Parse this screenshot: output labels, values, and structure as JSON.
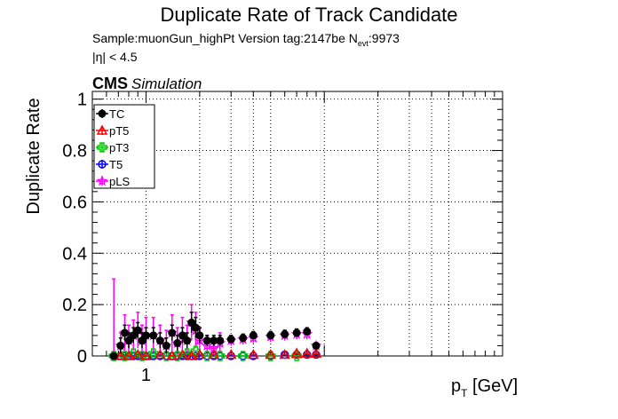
{
  "chart_data": {
    "type": "scatter",
    "title": "Duplicate Rate of Track Candidate",
    "subtitle_sample": "Sample:muonGun_highPt   Version tag:2147be  N",
    "subtitle_nevt_sub": "evt",
    "subtitle_nevt_value": ":9973",
    "subtitle_eta": "|η| < 4.5",
    "cms_label": "CMS",
    "simulation_label": "Simulation",
    "ylabel": "Duplicate Rate",
    "xlabel_main": "p",
    "xlabel_sub": "T",
    "xlabel_unit": " [GeV]",
    "x_scale": "log",
    "xlim": [
      0.5,
      100
    ],
    "ylim": [
      0,
      1.03
    ],
    "yticks": [
      "0",
      "0.2",
      "0.4",
      "0.6",
      "0.8",
      "1"
    ],
    "ytick_values": [
      0,
      0.2,
      0.4,
      0.6,
      0.8,
      1.0
    ],
    "xticks": [
      "1"
    ],
    "xtick_values": [
      1
    ],
    "grid": true,
    "legend_position": "top-left",
    "series": [
      {
        "name": "TC",
        "color": "#000000",
        "marker": "filled-circle",
        "x": [
          0.66,
          0.72,
          0.76,
          0.8,
          0.85,
          0.9,
          0.95,
          1.0,
          1.1,
          1.2,
          1.3,
          1.4,
          1.5,
          1.6,
          1.7,
          1.8,
          1.9,
          2.0,
          2.2,
          2.4,
          2.6,
          3.0,
          3.5,
          4.0,
          5.0,
          6.0,
          7.0,
          8.0,
          9.0
        ],
        "y": [
          0.0,
          0.04,
          0.09,
          0.06,
          0.08,
          0.1,
          0.06,
          0.08,
          0.08,
          0.06,
          0.04,
          0.09,
          0.05,
          0.08,
          0.06,
          0.13,
          0.11,
          0.08,
          0.06,
          0.06,
          0.06,
          0.065,
          0.07,
          0.08,
          0.08,
          0.085,
          0.09,
          0.095,
          0.04
        ],
        "err": [
          0.0,
          0.03,
          0.03,
          0.03,
          0.03,
          0.03,
          0.03,
          0.03,
          0.03,
          0.03,
          0.03,
          0.03,
          0.03,
          0.03,
          0.03,
          0.04,
          0.04,
          0.03,
          0.02,
          0.02,
          0.02,
          0.015,
          0.015,
          0.015,
          0.015,
          0.015,
          0.015,
          0.015,
          0.01
        ]
      },
      {
        "name": "pT5",
        "color": "#ff0000",
        "marker": "open-triangle",
        "x": [
          0.72,
          0.8,
          0.9,
          1.0,
          1.2,
          1.4,
          1.6,
          1.8,
          2.0,
          2.4,
          3.0,
          4.0,
          5.0,
          6.0,
          7.0,
          8.0,
          9.0
        ],
        "y": [
          0.0,
          0.0,
          0.005,
          0.0,
          0.005,
          0.0,
          0.005,
          0.0,
          0.005,
          0.005,
          0.005,
          0.005,
          0.005,
          0.005,
          0.01,
          0.01,
          0.01
        ],
        "err": [
          0,
          0,
          0,
          0,
          0,
          0,
          0,
          0,
          0,
          0,
          0,
          0,
          0,
          0,
          0,
          0,
          0
        ]
      },
      {
        "name": "pT3",
        "color": "#00cc00",
        "marker": "open-cross",
        "x": [
          0.66,
          0.76,
          0.85,
          0.95,
          1.1,
          1.3,
          1.5,
          1.7,
          1.9,
          2.2,
          2.6,
          3.5,
          5.0,
          7.0
        ],
        "y": [
          0.0,
          0.0,
          0.01,
          0.0,
          0.01,
          0.0,
          0.0,
          0.01,
          0.02,
          0.0,
          0.0,
          0.0,
          0.0,
          0.0
        ],
        "err": [
          0,
          0,
          0,
          0,
          0,
          0,
          0,
          0,
          0,
          0,
          0,
          0,
          0,
          0
        ]
      },
      {
        "name": "T5",
        "color": "#0000ff",
        "marker": "open-circle",
        "x": [
          0.66,
          0.72,
          0.76,
          0.8,
          0.85,
          0.9,
          0.95,
          1.0,
          1.1,
          1.2,
          1.3,
          1.4,
          1.5,
          1.6,
          1.7,
          1.8,
          1.9,
          2.0,
          2.2,
          2.4,
          2.6,
          3.0,
          3.5,
          4.0,
          5.0,
          6.0,
          7.0,
          8.0,
          9.0
        ],
        "y": [
          0.0,
          0.0,
          0.0,
          0.0,
          0.0,
          0.0,
          0.0,
          0.0,
          0.0,
          0.0,
          0.0,
          0.0,
          0.0,
          0.0,
          0.0,
          0.0,
          0.0,
          0.0,
          0.0,
          0.0,
          0.0,
          0.0,
          0.0,
          0.0,
          0.0,
          0.005,
          0.005,
          0.005,
          0.005
        ],
        "err": [
          0,
          0,
          0,
          0,
          0,
          0,
          0,
          0,
          0,
          0,
          0,
          0,
          0,
          0,
          0,
          0,
          0,
          0,
          0,
          0,
          0,
          0,
          0,
          0,
          0,
          0,
          0,
          0,
          0
        ]
      },
      {
        "name": "pLS",
        "color": "#ff00ff",
        "marker": "open-star",
        "x": [
          0.66,
          0.72,
          0.76,
          0.8,
          0.85,
          0.9,
          0.95,
          1.0,
          1.1,
          1.2,
          1.3,
          1.4,
          1.5,
          1.6,
          1.7,
          1.8,
          1.9,
          2.0,
          2.2,
          2.4,
          2.6,
          3.0,
          3.5,
          4.0,
          5.0,
          6.0,
          7.0,
          8.0,
          9.0
        ],
        "y": [
          0.0,
          0.04,
          0.09,
          0.06,
          0.08,
          0.1,
          0.06,
          0.08,
          0.08,
          0.06,
          0.04,
          0.09,
          0.05,
          0.08,
          0.06,
          0.13,
          0.1,
          0.06,
          0.04,
          0.03,
          0.05,
          0.06,
          0.065,
          0.07,
          0.075,
          0.08,
          0.085,
          0.085,
          0.04
        ],
        "err": [
          0.3,
          0.05,
          0.07,
          0.06,
          0.06,
          0.07,
          0.06,
          0.07,
          0.07,
          0.06,
          0.06,
          0.07,
          0.06,
          0.07,
          0.06,
          0.07,
          0.07,
          0.05,
          0.04,
          0.03,
          0.04,
          0.02,
          0.02,
          0.02,
          0.02,
          0.02,
          0.02,
          0.02,
          0.01
        ]
      }
    ]
  }
}
